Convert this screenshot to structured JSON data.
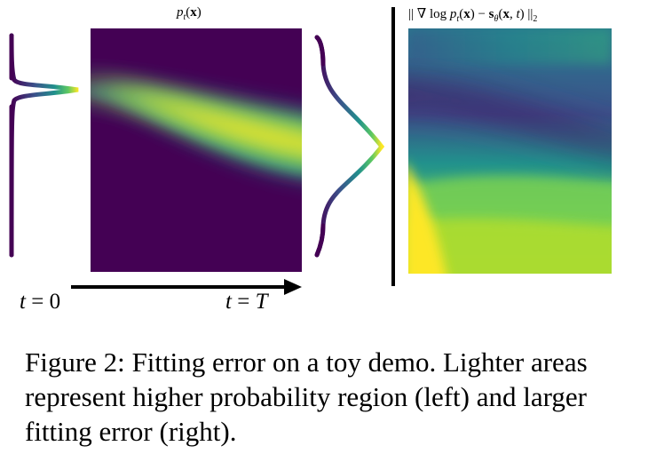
{
  "figure": {
    "left_title": {
      "prefix": "p",
      "subscript": "t",
      "open": "(",
      "var": "x",
      "close": ")"
    },
    "right_title": {
      "text": "‖ ∇ log p_t(x) − s_θ(x, t) ‖₂",
      "bars_open": "||",
      "nabla_log": "∇ log ",
      "p": "p",
      "p_sub": "t",
      "paren_x_open": "(",
      "x": "x",
      "paren_x_close": ")",
      "minus": " − ",
      "s": "s",
      "theta": "θ",
      "args": "(x, t)",
      "args_open": "(",
      "args_x": "x",
      "args_comma": ", ",
      "args_t": "t",
      "args_close": ")",
      "bars_close": "||",
      "norm_sub": "2"
    },
    "t_start": {
      "var": "t",
      "eq": " = ",
      "val": "0"
    },
    "t_end": {
      "var": "t",
      "eq": " = ",
      "val": "T"
    },
    "colormap": "viridis",
    "colors": {
      "low": "#440154",
      "mid": "#21918c",
      "high": "#fde725"
    }
  },
  "caption": {
    "label": "Figure 2:",
    "text": "Fitting error on a toy demo. Lighter areas represent higher probability region (left) and larger fitting error (right)."
  }
}
